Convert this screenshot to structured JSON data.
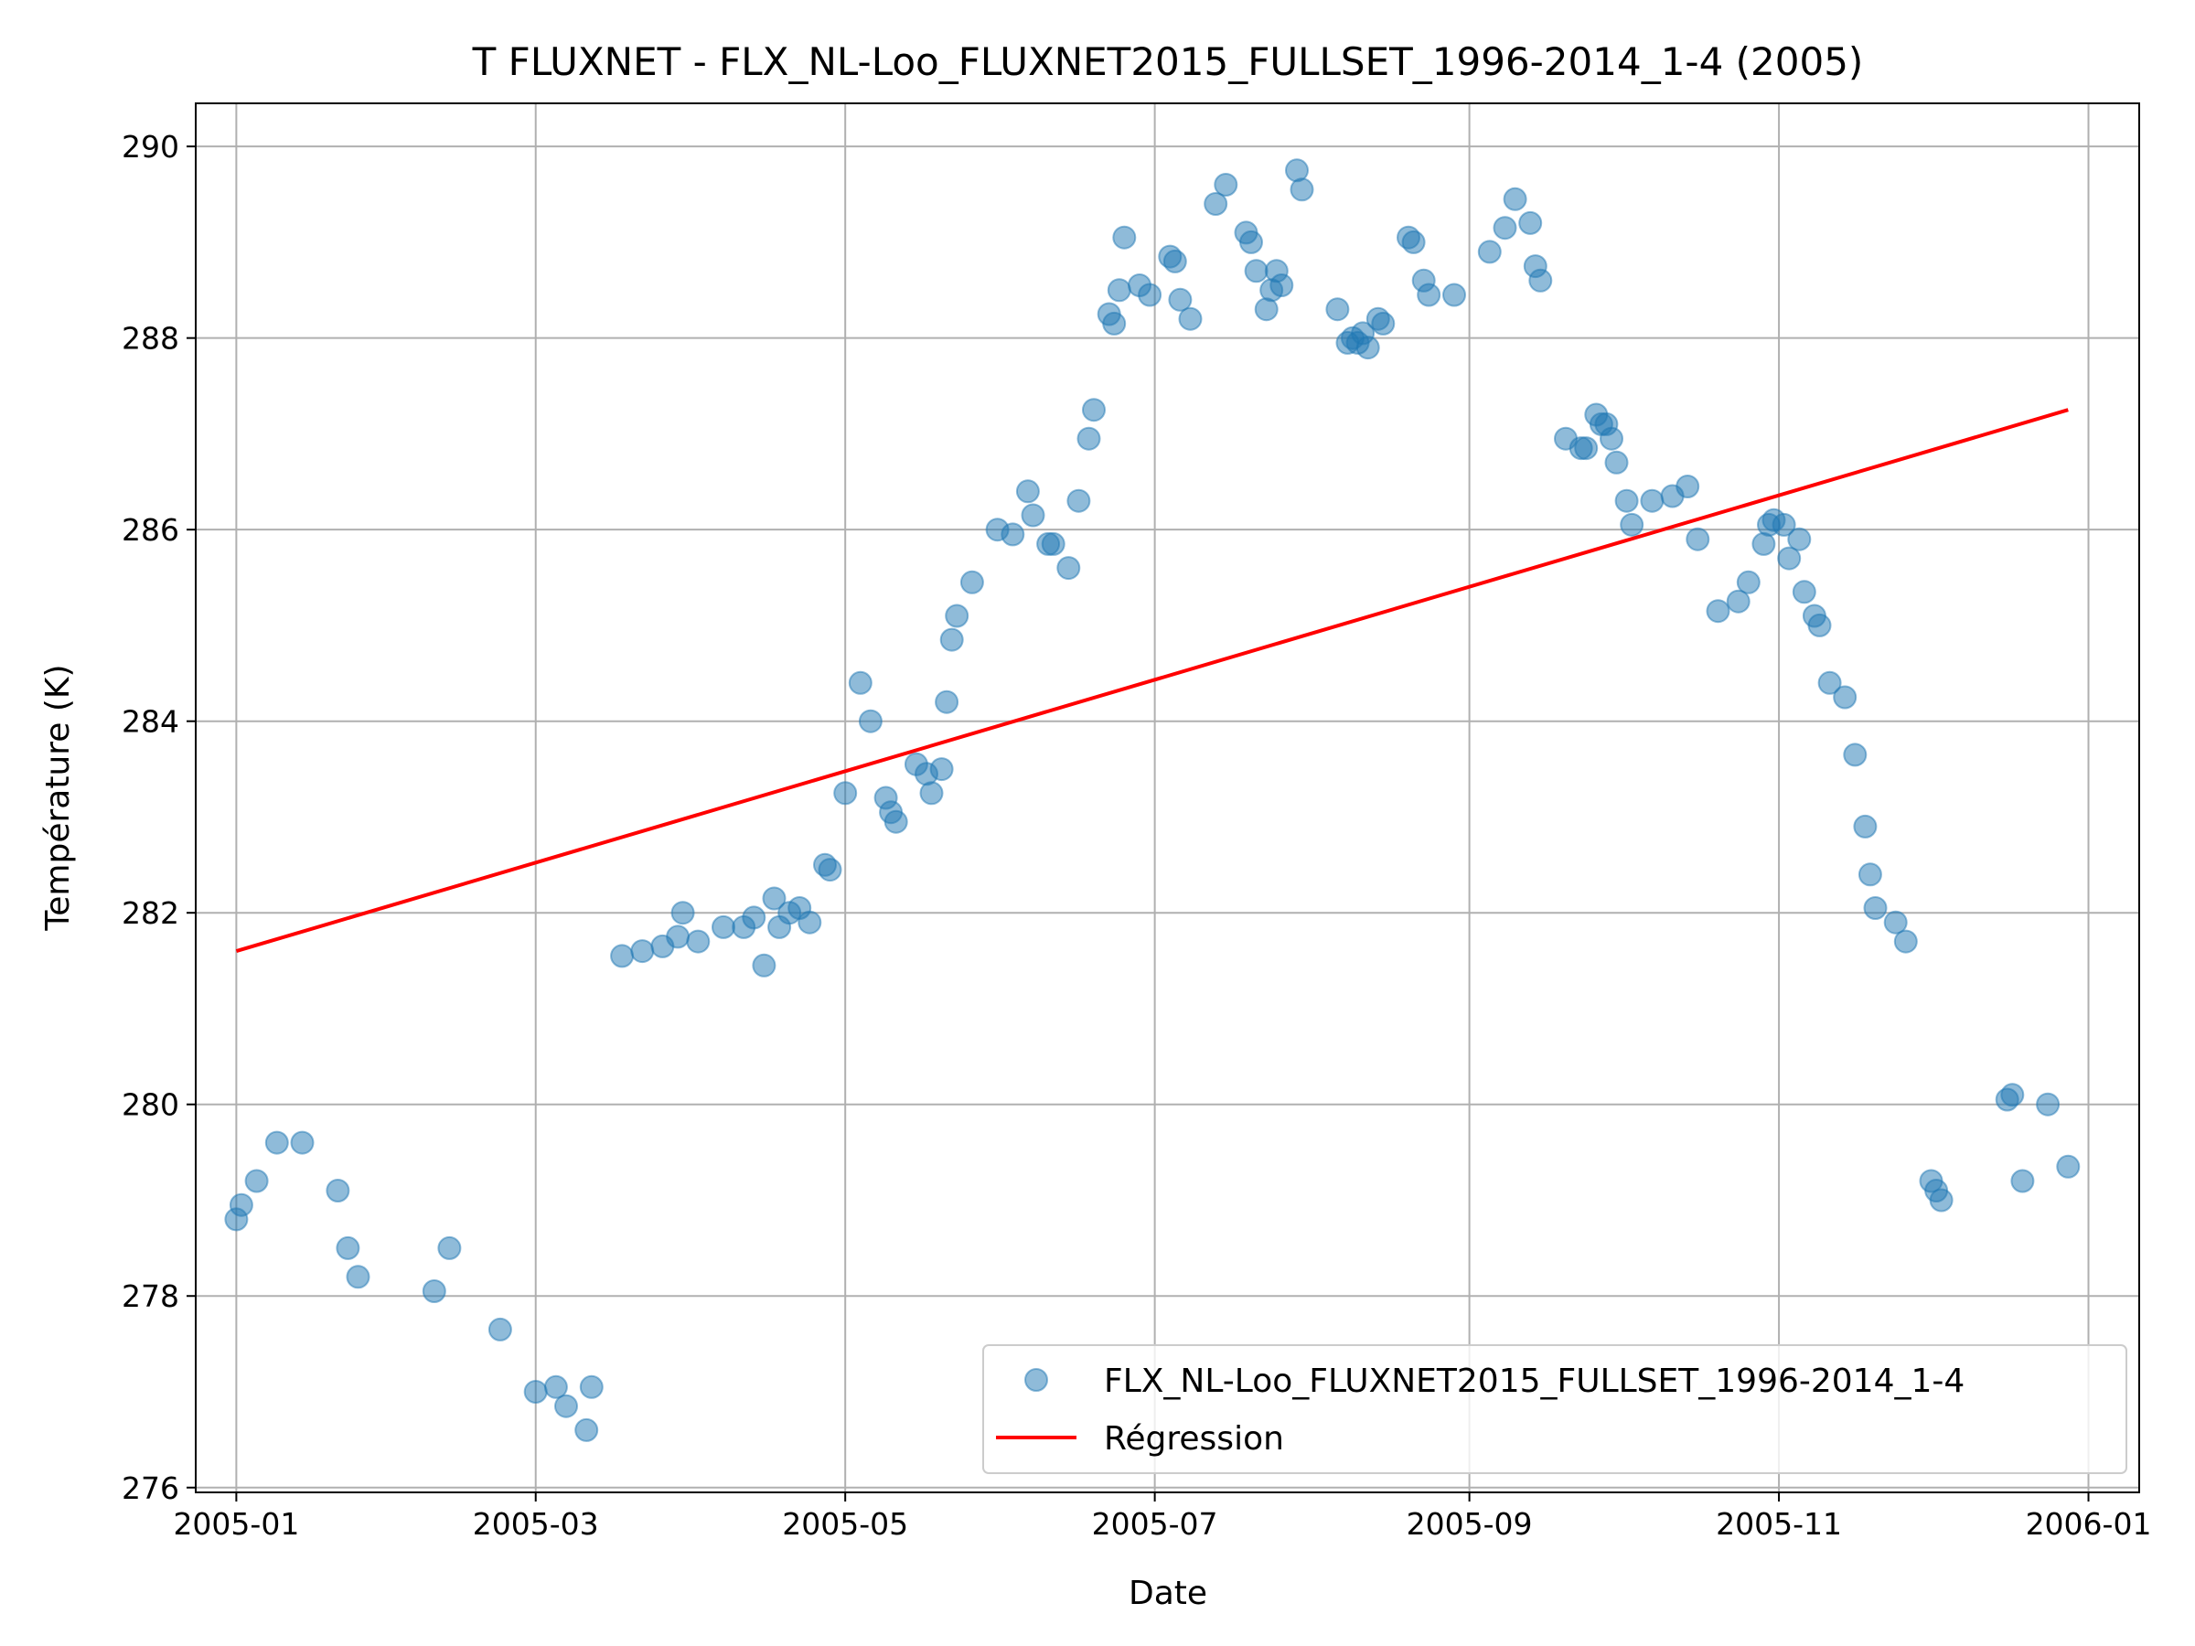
{
  "chart_data": {
    "type": "scatter",
    "title": "T FLUXNET - FLX_NL-Loo_FLUXNET2015_FULLSET_1996-2014_1-4 (2005)",
    "xlabel": "Date",
    "ylabel": "Température (K)",
    "xlim": [
      "2004-12-24",
      "2006-01-11"
    ],
    "ylim": [
      275.95,
      290.45
    ],
    "grid": true,
    "legend_position": "lower right",
    "x_ticks": [
      "2005-01",
      "2005-03",
      "2005-05",
      "2005-07",
      "2005-09",
      "2005-11",
      "2006-01"
    ],
    "y_ticks": [
      "276",
      "278",
      "280",
      "282",
      "284",
      "286",
      "288",
      "290"
    ],
    "colors": {
      "scatter": "#1f77b4",
      "regression": "#ff0000"
    },
    "series": [
      {
        "name": "FLX_NL-Loo_FLUXNET2015_FULLSET_1996-2014_1-4",
        "kind": "scatter",
        "points": [
          [
            "2005-01-01",
            278.8
          ],
          [
            "2005-01-02",
            278.95
          ],
          [
            "2005-01-05",
            279.2
          ],
          [
            "2005-01-09",
            279.6
          ],
          [
            "2005-01-14",
            279.6
          ],
          [
            "2005-01-21",
            279.1
          ],
          [
            "2005-01-23",
            278.5
          ],
          [
            "2005-01-25",
            278.2
          ],
          [
            "2005-02-09",
            278.05
          ],
          [
            "2005-02-12",
            278.5
          ],
          [
            "2005-02-22",
            277.65
          ],
          [
            "2005-03-01",
            277.0
          ],
          [
            "2005-03-05",
            277.05
          ],
          [
            "2005-03-07",
            276.85
          ],
          [
            "2005-03-11",
            276.6
          ],
          [
            "2005-03-12",
            277.05
          ],
          [
            "2005-03-18",
            281.55
          ],
          [
            "2005-03-22",
            281.6
          ],
          [
            "2005-03-26",
            281.65
          ],
          [
            "2005-03-29",
            281.75
          ],
          [
            "2005-03-30",
            282.0
          ],
          [
            "2005-04-02",
            281.7
          ],
          [
            "2005-04-07",
            281.85
          ],
          [
            "2005-04-11",
            281.85
          ],
          [
            "2005-04-13",
            281.95
          ],
          [
            "2005-04-15",
            281.45
          ],
          [
            "2005-04-17",
            282.15
          ],
          [
            "2005-04-18",
            281.85
          ],
          [
            "2005-04-20",
            282.0
          ],
          [
            "2005-04-22",
            282.05
          ],
          [
            "2005-04-24",
            281.9
          ],
          [
            "2005-04-27",
            282.5
          ],
          [
            "2005-04-28",
            282.45
          ],
          [
            "2005-05-01",
            283.25
          ],
          [
            "2005-05-04",
            284.4
          ],
          [
            "2005-05-06",
            284.0
          ],
          [
            "2005-05-09",
            283.2
          ],
          [
            "2005-05-10",
            283.05
          ],
          [
            "2005-05-11",
            282.95
          ],
          [
            "2005-05-15",
            283.55
          ],
          [
            "2005-05-17",
            283.45
          ],
          [
            "2005-05-18",
            283.25
          ],
          [
            "2005-05-20",
            283.5
          ],
          [
            "2005-05-21",
            284.2
          ],
          [
            "2005-05-22",
            284.85
          ],
          [
            "2005-05-23",
            285.1
          ],
          [
            "2005-05-26",
            285.45
          ],
          [
            "2005-05-31",
            286.0
          ],
          [
            "2005-06-03",
            285.95
          ],
          [
            "2005-06-06",
            286.4
          ],
          [
            "2005-06-07",
            286.15
          ],
          [
            "2005-06-10",
            285.85
          ],
          [
            "2005-06-11",
            285.85
          ],
          [
            "2005-06-14",
            285.6
          ],
          [
            "2005-06-16",
            286.3
          ],
          [
            "2005-06-18",
            286.95
          ],
          [
            "2005-06-19",
            287.25
          ],
          [
            "2005-06-22",
            288.25
          ],
          [
            "2005-06-23",
            288.15
          ],
          [
            "2005-06-24",
            288.5
          ],
          [
            "2005-06-25",
            289.05
          ],
          [
            "2005-06-28",
            288.55
          ],
          [
            "2005-06-30",
            288.45
          ],
          [
            "2005-07-04",
            288.85
          ],
          [
            "2005-07-05",
            288.8
          ],
          [
            "2005-07-06",
            288.4
          ],
          [
            "2005-07-08",
            288.2
          ],
          [
            "2005-07-13",
            289.4
          ],
          [
            "2005-07-15",
            289.6
          ],
          [
            "2005-07-19",
            289.1
          ],
          [
            "2005-07-20",
            289.0
          ],
          [
            "2005-07-21",
            288.7
          ],
          [
            "2005-07-23",
            288.3
          ],
          [
            "2005-07-24",
            288.5
          ],
          [
            "2005-07-25",
            288.7
          ],
          [
            "2005-07-26",
            288.55
          ],
          [
            "2005-07-29",
            289.75
          ],
          [
            "2005-07-30",
            289.55
          ],
          [
            "2005-08-06",
            288.3
          ],
          [
            "2005-08-08",
            287.95
          ],
          [
            "2005-08-09",
            288.0
          ],
          [
            "2005-08-10",
            287.95
          ],
          [
            "2005-08-11",
            288.05
          ],
          [
            "2005-08-12",
            287.9
          ],
          [
            "2005-08-14",
            288.2
          ],
          [
            "2005-08-15",
            288.15
          ],
          [
            "2005-08-20",
            289.05
          ],
          [
            "2005-08-21",
            289.0
          ],
          [
            "2005-08-23",
            288.6
          ],
          [
            "2005-08-24",
            288.45
          ],
          [
            "2005-08-29",
            288.45
          ],
          [
            "2005-09-05",
            288.9
          ],
          [
            "2005-09-08",
            289.15
          ],
          [
            "2005-09-10",
            289.45
          ],
          [
            "2005-09-13",
            289.2
          ],
          [
            "2005-09-14",
            288.75
          ],
          [
            "2005-09-15",
            288.6
          ],
          [
            "2005-09-20",
            286.95
          ],
          [
            "2005-09-23",
            286.85
          ],
          [
            "2005-09-24",
            286.85
          ],
          [
            "2005-09-26",
            287.2
          ],
          [
            "2005-09-27",
            287.1
          ],
          [
            "2005-09-28",
            287.1
          ],
          [
            "2005-09-29",
            286.95
          ],
          [
            "2005-09-30",
            286.7
          ],
          [
            "2005-10-02",
            286.3
          ],
          [
            "2005-10-03",
            286.05
          ],
          [
            "2005-10-07",
            286.3
          ],
          [
            "2005-10-11",
            286.35
          ],
          [
            "2005-10-14",
            286.45
          ],
          [
            "2005-10-16",
            285.9
          ],
          [
            "2005-10-20",
            285.15
          ],
          [
            "2005-10-24",
            285.25
          ],
          [
            "2005-10-26",
            285.45
          ],
          [
            "2005-10-29",
            285.85
          ],
          [
            "2005-10-30",
            286.05
          ],
          [
            "2005-10-31",
            286.1
          ],
          [
            "2005-11-02",
            286.05
          ],
          [
            "2005-11-03",
            285.7
          ],
          [
            "2005-11-05",
            285.9
          ],
          [
            "2005-11-06",
            285.35
          ],
          [
            "2005-11-08",
            285.1
          ],
          [
            "2005-11-09",
            285.0
          ],
          [
            "2005-11-11",
            284.4
          ],
          [
            "2005-11-14",
            284.25
          ],
          [
            "2005-11-16",
            283.65
          ],
          [
            "2005-11-18",
            282.9
          ],
          [
            "2005-11-19",
            282.4
          ],
          [
            "2005-11-20",
            282.05
          ],
          [
            "2005-11-24",
            281.9
          ],
          [
            "2005-11-26",
            281.7
          ],
          [
            "2005-12-01",
            279.2
          ],
          [
            "2005-12-02",
            279.1
          ],
          [
            "2005-12-03",
            279.0
          ],
          [
            "2005-12-16",
            280.05
          ],
          [
            "2005-12-17",
            280.1
          ],
          [
            "2005-12-19",
            279.2
          ],
          [
            "2005-12-24",
            280.0
          ],
          [
            "2005-12-28",
            279.35
          ]
        ]
      },
      {
        "name": "Régression",
        "kind": "line",
        "points": [
          [
            "2005-01-01",
            281.6
          ],
          [
            "2005-12-28",
            287.25
          ]
        ]
      }
    ]
  }
}
